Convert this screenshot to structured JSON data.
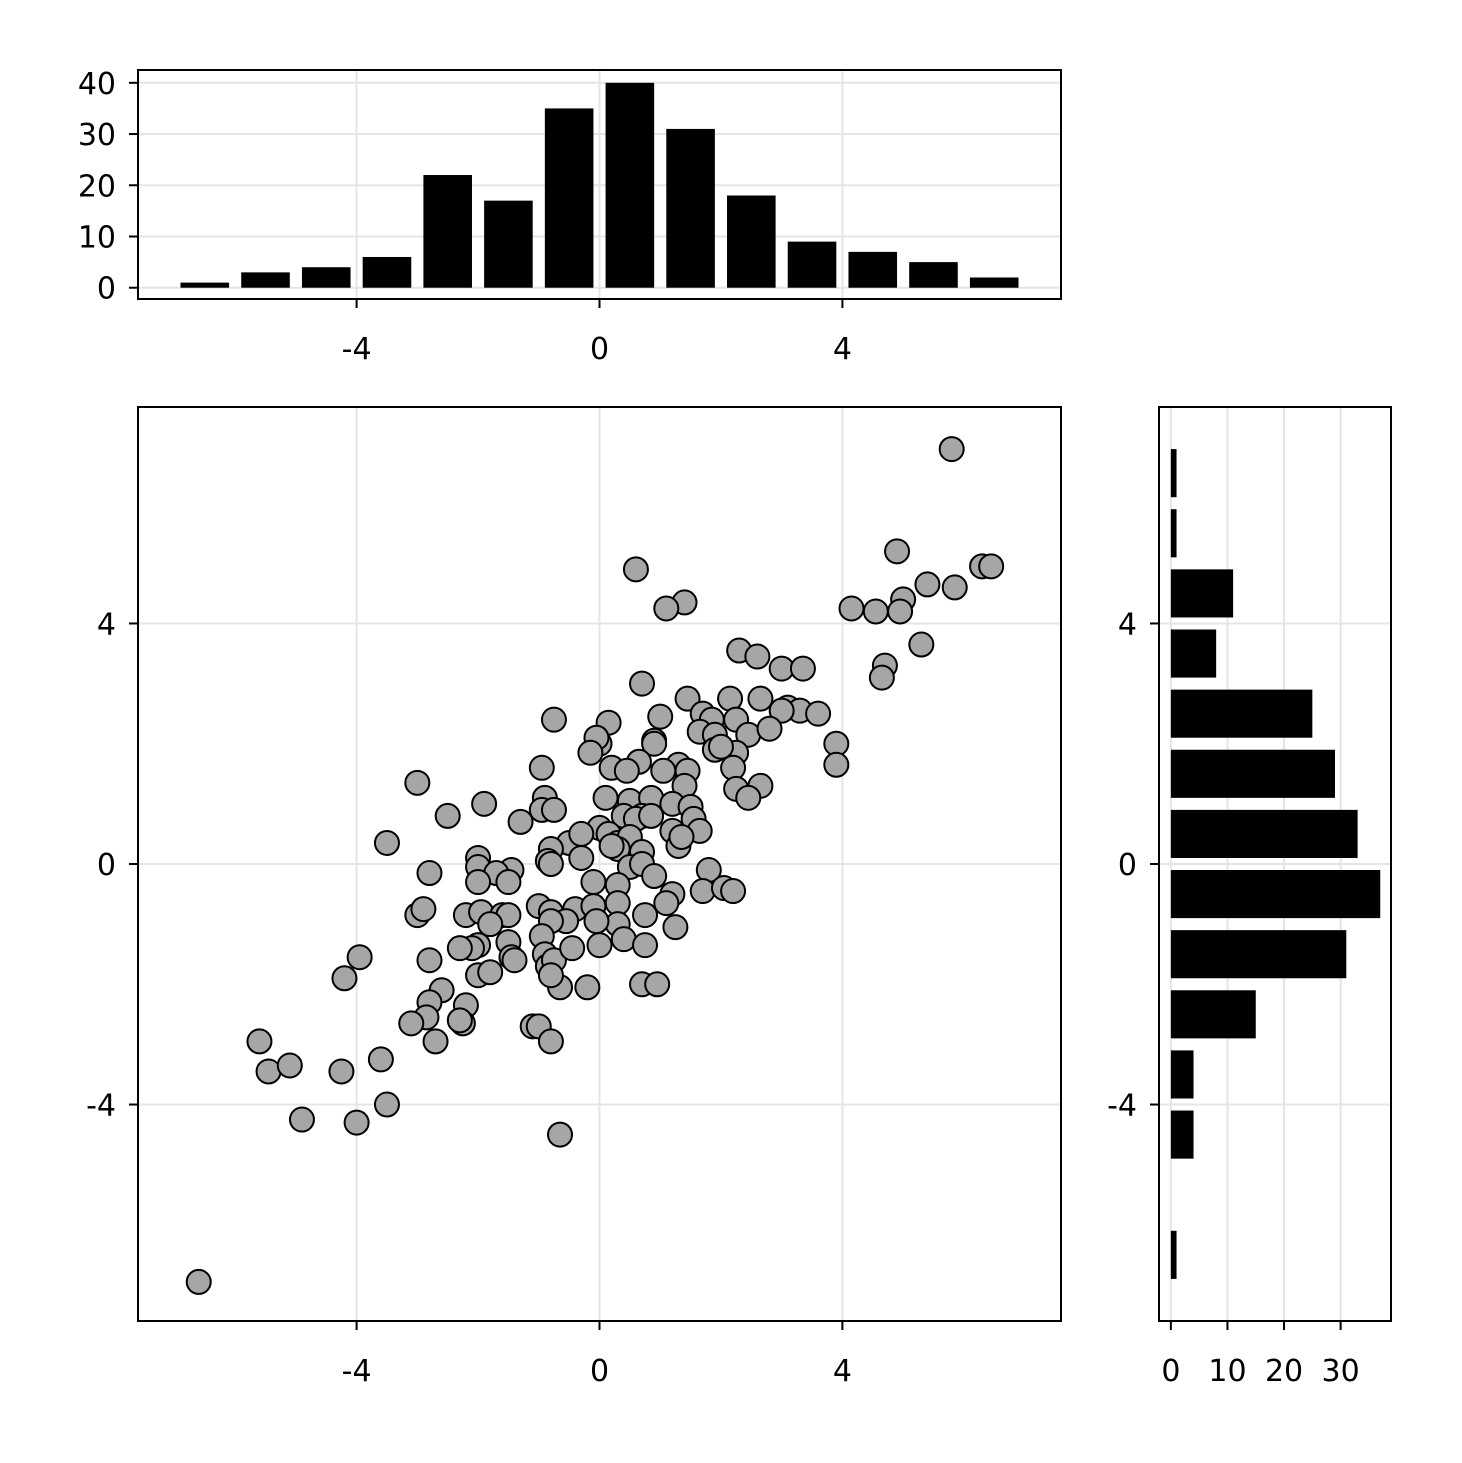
{
  "chart_data": [
    {
      "name": "top-histogram",
      "type": "bar",
      "orientation": "vertical",
      "bin_centers": [
        -6.5,
        -5.5,
        -4.5,
        -3.5,
        -2.5,
        -1.5,
        -0.5,
        0.5,
        1.5,
        2.5,
        3.5,
        4.5,
        5.5,
        6.5
      ],
      "values": [
        1,
        3,
        4,
        6,
        22,
        17,
        35,
        40,
        31,
        18,
        9,
        7,
        5,
        2
      ],
      "xlim": [
        -7.6,
        7.6
      ],
      "ylim": [
        -2.2,
        42.5
      ],
      "x_ticks": [
        -4,
        0,
        4
      ],
      "x_tick_labels": [
        "-4",
        "0",
        "4"
      ],
      "y_ticks": [
        0,
        10,
        20,
        30,
        40
      ],
      "y_tick_labels": [
        "0",
        "10",
        "20",
        "30",
        "40"
      ],
      "grid": true,
      "colors": {
        "bar": "#000000"
      }
    },
    {
      "name": "main-scatter",
      "type": "scatter",
      "xlim": [
        -7.6,
        7.6
      ],
      "ylim": [
        -7.6,
        7.6
      ],
      "x_ticks": [
        -4,
        0,
        4
      ],
      "x_tick_labels": [
        "-4",
        "0",
        "4"
      ],
      "y_ticks": [
        -4,
        0,
        4
      ],
      "y_tick_labels": [
        "-4",
        "0",
        "4"
      ],
      "grid": true,
      "colors": {
        "marker_fill": "#a6a6a6",
        "marker_edge": "#000000"
      },
      "points": [
        [
          -6.6,
          -6.95
        ],
        [
          5.8,
          6.9
        ],
        [
          0.6,
          4.9
        ],
        [
          1.4,
          4.35
        ],
        [
          1.1,
          4.25
        ],
        [
          4.9,
          5.2
        ],
        [
          6.3,
          4.95
        ],
        [
          6.45,
          4.95
        ],
        [
          5.4,
          4.65
        ],
        [
          5.85,
          4.6
        ],
        [
          5.0,
          4.4
        ],
        [
          4.15,
          4.25
        ],
        [
          4.55,
          4.2
        ],
        [
          4.95,
          4.2
        ],
        [
          5.3,
          3.65
        ],
        [
          4.7,
          3.3
        ],
        [
          4.65,
          3.1
        ],
        [
          2.3,
          3.55
        ],
        [
          2.6,
          3.45
        ],
        [
          3.0,
          3.25
        ],
        [
          3.35,
          3.25
        ],
        [
          0.7,
          3.0
        ],
        [
          1.45,
          2.75
        ],
        [
          2.15,
          2.75
        ],
        [
          2.65,
          2.75
        ],
        [
          3.1,
          2.6
        ],
        [
          3.3,
          2.55
        ],
        [
          3.6,
          2.5
        ],
        [
          3.0,
          2.55
        ],
        [
          1.0,
          2.45
        ],
        [
          1.7,
          2.5
        ],
        [
          1.85,
          2.4
        ],
        [
          2.25,
          2.4
        ],
        [
          -0.75,
          2.4
        ],
        [
          0.15,
          2.35
        ],
        [
          1.65,
          2.2
        ],
        [
          1.9,
          2.15
        ],
        [
          2.45,
          2.15
        ],
        [
          2.8,
          2.25
        ],
        [
          0.9,
          2.05
        ],
        [
          0.0,
          2.0
        ],
        [
          -0.05,
          2.1
        ],
        [
          0.9,
          2.0
        ],
        [
          1.9,
          1.9
        ],
        [
          2.25,
          1.85
        ],
        [
          2.0,
          1.95
        ],
        [
          3.9,
          2.0
        ],
        [
          3.9,
          1.65
        ],
        [
          -0.15,
          1.85
        ],
        [
          -0.95,
          1.6
        ],
        [
          0.2,
          1.6
        ],
        [
          0.65,
          1.7
        ],
        [
          1.3,
          1.65
        ],
        [
          0.45,
          1.55
        ],
        [
          2.2,
          1.6
        ],
        [
          1.45,
          1.55
        ],
        [
          1.05,
          1.55
        ],
        [
          -3.0,
          1.35
        ],
        [
          -0.9,
          1.1
        ],
        [
          0.1,
          1.1
        ],
        [
          0.5,
          1.05
        ],
        [
          0.85,
          1.1
        ],
        [
          1.4,
          1.3
        ],
        [
          2.65,
          1.3
        ],
        [
          2.25,
          1.25
        ],
        [
          2.45,
          1.1
        ],
        [
          1.2,
          1.0
        ],
        [
          1.5,
          0.95
        ],
        [
          -2.5,
          0.8
        ],
        [
          -1.9,
          1.0
        ],
        [
          -0.95,
          0.9
        ],
        [
          -0.75,
          0.9
        ],
        [
          0.4,
          0.8
        ],
        [
          0.7,
          0.8
        ],
        [
          1.55,
          0.75
        ],
        [
          -1.3,
          0.7
        ],
        [
          0.0,
          0.6
        ],
        [
          0.15,
          0.5
        ],
        [
          0.6,
          0.75
        ],
        [
          0.85,
          0.8
        ],
        [
          1.2,
          0.55
        ],
        [
          1.65,
          0.55
        ],
        [
          -3.5,
          0.35
        ],
        [
          -0.5,
          0.35
        ],
        [
          -0.3,
          0.5
        ],
        [
          0.3,
          0.35
        ],
        [
          0.5,
          0.45
        ],
        [
          1.3,
          0.3
        ],
        [
          1.35,
          0.45
        ],
        [
          -0.8,
          0.25
        ],
        [
          -0.3,
          0.1
        ],
        [
          0.3,
          0.25
        ],
        [
          0.7,
          0.2
        ],
        [
          0.2,
          0.3
        ],
        [
          -0.85,
          0.05
        ],
        [
          -2.0,
          0.1
        ],
        [
          -2.0,
          -0.05
        ],
        [
          -2.8,
          -0.15
        ],
        [
          -1.45,
          -0.1
        ],
        [
          -1.7,
          -0.15
        ],
        [
          -0.8,
          0.0
        ],
        [
          0.5,
          -0.05
        ],
        [
          0.7,
          0.0
        ],
        [
          0.9,
          -0.2
        ],
        [
          1.8,
          -0.1
        ],
        [
          -2.0,
          -0.3
        ],
        [
          -1.5,
          -0.3
        ],
        [
          0.3,
          -0.35
        ],
        [
          -0.1,
          -0.3
        ],
        [
          1.2,
          -0.5
        ],
        [
          1.7,
          -0.45
        ],
        [
          2.05,
          -0.4
        ],
        [
          2.2,
          -0.45
        ],
        [
          -3.0,
          -0.85
        ],
        [
          -2.9,
          -0.75
        ],
        [
          -2.2,
          -0.85
        ],
        [
          -1.95,
          -0.8
        ],
        [
          -1.6,
          -0.85
        ],
        [
          -1.5,
          -0.85
        ],
        [
          -1.8,
          -1.0
        ],
        [
          -1.0,
          -0.7
        ],
        [
          -0.8,
          -0.8
        ],
        [
          -0.4,
          -0.75
        ],
        [
          -0.1,
          -0.7
        ],
        [
          0.3,
          -0.65
        ],
        [
          0.75,
          -0.85
        ],
        [
          1.1,
          -0.65
        ],
        [
          1.25,
          -1.05
        ],
        [
          0.3,
          -1.0
        ],
        [
          -0.05,
          -0.95
        ],
        [
          -0.55,
          -0.95
        ],
        [
          -0.8,
          -0.95
        ],
        [
          -0.95,
          -1.2
        ],
        [
          -0.9,
          -1.5
        ],
        [
          -2.0,
          -1.35
        ],
        [
          -2.1,
          -1.4
        ],
        [
          -2.3,
          -1.4
        ],
        [
          -1.5,
          -1.3
        ],
        [
          -1.45,
          -1.55
        ],
        [
          -1.4,
          -1.6
        ],
        [
          -2.8,
          -1.6
        ],
        [
          -2.0,
          -1.85
        ],
        [
          -1.8,
          -1.8
        ],
        [
          -0.85,
          -1.7
        ],
        [
          -0.75,
          -1.6
        ],
        [
          -0.45,
          -1.4
        ],
        [
          0.0,
          -1.35
        ],
        [
          0.4,
          -1.25
        ],
        [
          0.75,
          -1.35
        ],
        [
          -4.2,
          -1.9
        ],
        [
          -3.95,
          -1.55
        ],
        [
          -2.6,
          -2.1
        ],
        [
          -2.8,
          -2.3
        ],
        [
          -2.2,
          -2.35
        ],
        [
          -2.85,
          -2.55
        ],
        [
          -2.25,
          -2.65
        ],
        [
          -2.3,
          -2.6
        ],
        [
          -3.1,
          -2.65
        ],
        [
          -2.7,
          -2.95
        ],
        [
          -0.2,
          -2.05
        ],
        [
          -0.65,
          -2.05
        ],
        [
          -0.8,
          -1.85
        ],
        [
          0.7,
          -2.0
        ],
        [
          0.95,
          -2.0
        ],
        [
          -1.1,
          -2.7
        ],
        [
          -1.0,
          -2.7
        ],
        [
          -0.8,
          -2.95
        ],
        [
          -5.6,
          -2.95
        ],
        [
          -5.45,
          -3.45
        ],
        [
          -5.1,
          -3.35
        ],
        [
          -4.25,
          -3.45
        ],
        [
          -3.6,
          -3.25
        ],
        [
          -3.5,
          -4.0
        ],
        [
          -4.9,
          -4.25
        ],
        [
          -4.0,
          -4.3
        ],
        [
          -0.65,
          -4.5
        ]
      ]
    },
    {
      "name": "right-histogram",
      "type": "bar",
      "orientation": "horizontal",
      "bin_centers": [
        -6.5,
        -4.5,
        -3.5,
        -2.5,
        -1.5,
        -0.5,
        0.5,
        1.5,
        2.5,
        3.5,
        4.5,
        5.5,
        6.5
      ],
      "values": [
        1,
        4,
        4,
        15,
        31,
        37,
        33,
        29,
        25,
        8,
        11,
        1,
        1
      ],
      "xlim": [
        -2.1,
        38.9
      ],
      "ylim": [
        -7.6,
        7.6
      ],
      "x_ticks": [
        0,
        10,
        20,
        30
      ],
      "x_tick_labels": [
        "0",
        "10",
        "20",
        "30"
      ],
      "y_ticks": [
        -4,
        0,
        4
      ],
      "y_tick_labels": [
        "-4",
        "0",
        "4"
      ],
      "grid": true,
      "colors": {
        "bar": "#000000"
      }
    }
  ]
}
